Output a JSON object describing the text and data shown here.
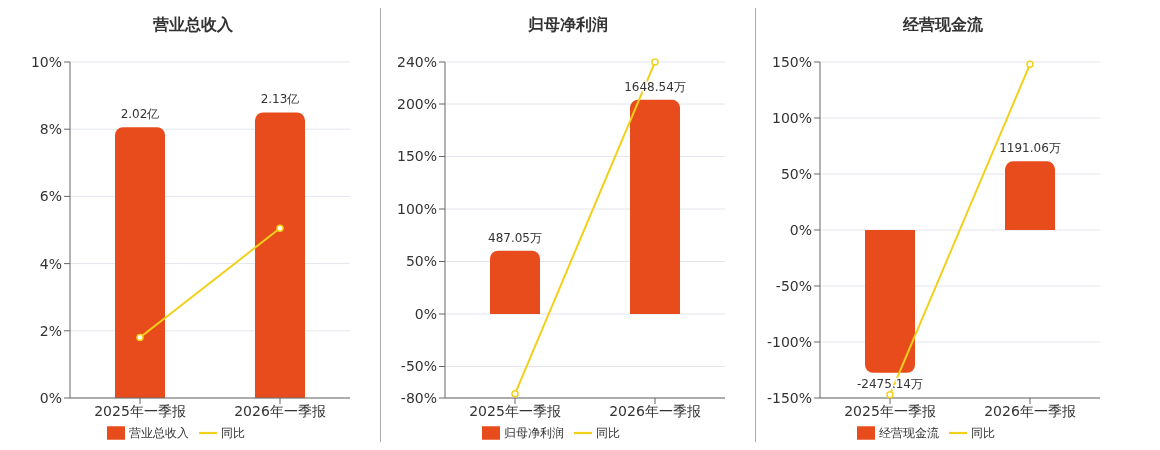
{
  "chart_data": [
    {
      "type": "bar",
      "title": "营业总收入",
      "categories": [
        "2025年一季报",
        "2026年一季报"
      ],
      "series": [
        {
          "name": "营业总收入",
          "axis": "y2",
          "color": "#e84c1c",
          "values": [
            2.02,
            2.13
          ],
          "value_labels": [
            "2.02亿",
            "2.13亿"
          ]
        },
        {
          "name": "同比",
          "type": "line",
          "color": "#f2d01a",
          "values": [
            1.8,
            5.05
          ]
        }
      ],
      "ylim": [
        0,
        10
      ],
      "yticks": [
        {
          "value": 0,
          "label": "0%"
        },
        {
          "value": 2,
          "label": "2%"
        },
        {
          "value": 4,
          "label": "4%"
        },
        {
          "value": 6,
          "label": "6%"
        },
        {
          "value": 8,
          "label": "8%"
        },
        {
          "value": 10,
          "label": "10%"
        }
      ],
      "grid": "y",
      "legend": "bottom",
      "marker": "circle"
    },
    {
      "type": "bar",
      "title": "归母净利润",
      "categories": [
        "2025年一季报",
        "2026年一季报"
      ],
      "series": [
        {
          "name": "归母净利润",
          "axis": "y2",
          "color": "#e84c1c",
          "values": [
            487.05,
            1648.54
          ],
          "value_labels": [
            "487.05万",
            "1648.54万"
          ]
        },
        {
          "name": "同比",
          "type": "line",
          "color": "#f2d01a",
          "values": [
            -76,
            240
          ]
        }
      ],
      "ylim": [
        -80,
        240
      ],
      "yticks": [
        {
          "value": -80,
          "label": "-80%"
        },
        {
          "value": -50,
          "label": "-50%"
        },
        {
          "value": 0,
          "label": "0%"
        },
        {
          "value": 50,
          "label": "50%"
        },
        {
          "value": 100,
          "label": "100%"
        },
        {
          "value": 150,
          "label": "150%"
        },
        {
          "value": 200,
          "label": "200%"
        },
        {
          "value": 240,
          "label": "240%"
        }
      ],
      "grid": "y",
      "legend": "bottom",
      "marker": "circle"
    },
    {
      "type": "bar",
      "title": "经营现金流",
      "categories": [
        "2025年一季报",
        "2026年一季报"
      ],
      "series": [
        {
          "name": "经营现金流",
          "axis": "y2",
          "color": "#e84c1c",
          "values": [
            -2475.14,
            1191.06
          ],
          "value_labels": [
            "-2475.14万",
            "1191.06万"
          ]
        },
        {
          "name": "同比",
          "type": "line",
          "color": "#f2d01a",
          "values": [
            -147,
            148
          ]
        }
      ],
      "ylim": [
        -150,
        150
      ],
      "yticks": [
        {
          "value": -150,
          "label": "-150%"
        },
        {
          "value": -100,
          "label": "-100%"
        },
        {
          "value": -50,
          "label": "-50%"
        },
        {
          "value": 0,
          "label": "0%"
        },
        {
          "value": 50,
          "label": "50%"
        },
        {
          "value": 100,
          "label": "100%"
        },
        {
          "value": 150,
          "label": "150%"
        }
      ],
      "grid": "y",
      "legend": "bottom",
      "marker": "circle"
    }
  ]
}
